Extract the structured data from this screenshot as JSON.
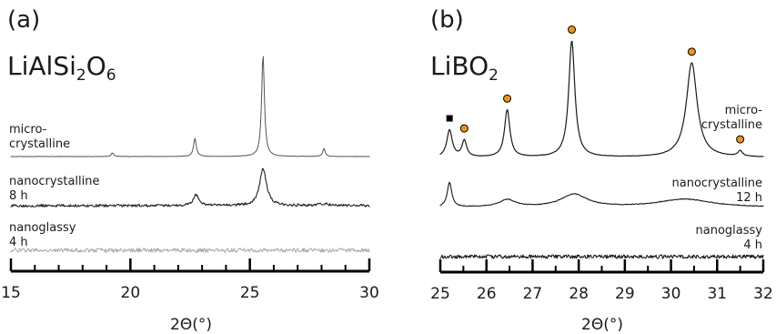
{
  "colors": {
    "ink": "#1a1a1a",
    "trace_micro_a": "#555555",
    "trace_nano_a": "#222222",
    "trace_glassy_a": "#a8a8a8",
    "trace_b": "#1a1a1a",
    "circle_marker": "#e8951f",
    "square_marker": "#000000"
  },
  "chart_data": [
    {
      "type": "line",
      "panel_label": "(a)",
      "compound": {
        "main": "LiAlSi",
        "sub1": "2",
        "mid": "O",
        "sub2": "6"
      },
      "xlabel": "2Θ(°)",
      "xlim": [
        15,
        30
      ],
      "ticks": [
        15,
        20,
        25,
        30
      ],
      "tick_labels": [
        "15",
        "20",
        "25",
        "30"
      ],
      "minor_ticks": [
        16,
        17,
        18,
        19,
        21,
        22,
        23,
        24,
        26,
        27,
        28,
        29
      ],
      "y_units": "a.u. (arbitrary intensity, offset per trace)",
      "series": [
        {
          "label_lines": [
            "micro-",
            "crystalline"
          ],
          "baseline": 0,
          "noise": 0.25,
          "peaks": [
            {
              "x": 19.25,
              "h": 4,
              "w": 0.06
            },
            {
              "x": 22.7,
              "h": 20,
              "w": 0.07
            },
            {
              "x": 25.55,
              "h": 112,
              "w": 0.07
            },
            {
              "x": 28.1,
              "h": 9,
              "w": 0.06
            }
          ]
        },
        {
          "label_lines": [
            "nanocrystalline",
            "8 h"
          ],
          "baseline": 0,
          "noise": 1.4,
          "peaks": [
            {
              "x": 22.75,
              "h": 12,
              "w": 0.14
            },
            {
              "x": 25.55,
              "h": 41,
              "w": 0.17
            },
            {
              "x": 28.1,
              "h": 2,
              "w": 0.25
            }
          ]
        },
        {
          "label_lines": [
            "nanoglassy",
            "4 h"
          ],
          "baseline": 0,
          "noise": 2.2,
          "peaks": []
        }
      ]
    },
    {
      "type": "line",
      "panel_label": "(b)",
      "compound": {
        "main": "LiBO",
        "sub1": "2"
      },
      "xlabel": "2Θ(°)",
      "xlim": [
        25,
        32
      ],
      "ticks": [
        25,
        26,
        27,
        28,
        29,
        30,
        31,
        32
      ],
      "tick_labels": [
        "25",
        "26",
        "27",
        "28",
        "29",
        "30",
        "31",
        "32"
      ],
      "minor_ticks": [
        25.5,
        26.5,
        27.5,
        28.5,
        29.5,
        30.5,
        31.5
      ],
      "y_units": "a.u. (arbitrary intensity, offset per trace)",
      "series": [
        {
          "label_lines": [
            "micro-",
            "crystalline"
          ],
          "baseline": 0,
          "noise": 0.2,
          "peaks": [
            {
              "x": 25.2,
              "h": 30,
              "w": 0.07
            },
            {
              "x": 25.52,
              "h": 18,
              "w": 0.06
            },
            {
              "x": 26.45,
              "h": 52,
              "w": 0.07
            },
            {
              "x": 27.85,
              "h": 128,
              "w": 0.08
            },
            {
              "x": 30.45,
              "h": 104,
              "w": 0.14
            },
            {
              "x": 31.5,
              "h": 6,
              "w": 0.06
            }
          ],
          "markers": [
            {
              "x": 25.2,
              "shape": "square"
            },
            {
              "x": 25.52,
              "shape": "circle"
            },
            {
              "x": 26.45,
              "shape": "circle"
            },
            {
              "x": 27.85,
              "shape": "circle"
            },
            {
              "x": 30.45,
              "shape": "circle"
            },
            {
              "x": 31.5,
              "shape": "circle"
            }
          ]
        },
        {
          "label_lines": [
            "nanocrystalline",
            "12 h"
          ],
          "baseline": 0,
          "noise": 0.4,
          "peaks": [
            {
              "x": 25.2,
              "h": 27,
              "w": 0.06
            },
            {
              "x": 26.45,
              "h": 8,
              "w": 0.22
            },
            {
              "x": 27.9,
              "h": 14,
              "w": 0.35
            },
            {
              "x": 30.3,
              "h": 9,
              "w": 0.7
            }
          ]
        },
        {
          "label_lines": [
            "nanoglassy",
            "4 h"
          ],
          "baseline": 0,
          "noise": 2.0,
          "peaks": []
        }
      ]
    }
  ]
}
